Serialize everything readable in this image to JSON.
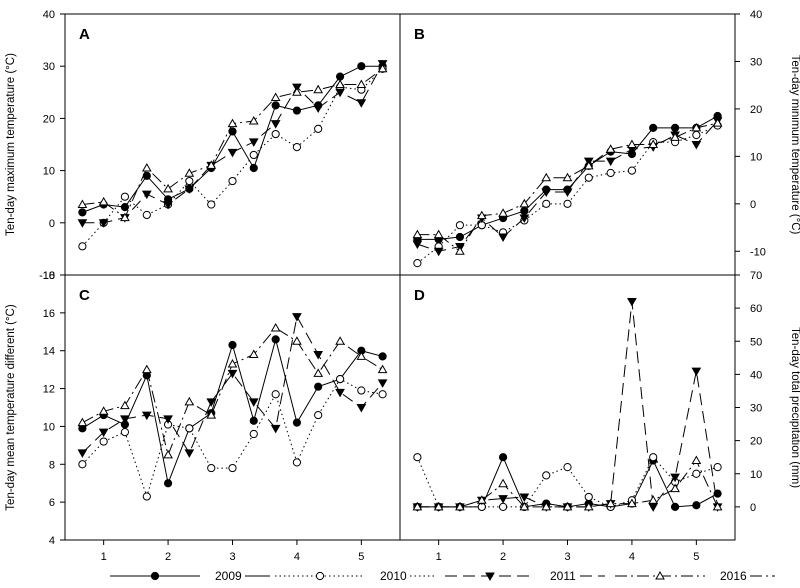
{
  "legend": [
    {
      "label": "2009",
      "dash": "",
      "marker": "circle-filled"
    },
    {
      "label": "2010",
      "dash": "1.5,3",
      "marker": "circle-open"
    },
    {
      "label": "2011",
      "dash": "12,6",
      "marker": "triangle-down-filled"
    },
    {
      "label": "2016",
      "dash": "12,4,2,4",
      "marker": "triangle-up-open"
    }
  ],
  "chart_data": [
    {
      "panel": "A",
      "type": "line",
      "ylabel": "Ten-day maximum temperature (°C)",
      "ylim": [
        -10,
        40
      ],
      "yticks": [
        "-10",
        "0",
        "10",
        "20",
        "30",
        "40"
      ],
      "y_axis_side": "left",
      "series": [
        {
          "name": "2009",
          "x": [
            0.67,
            1,
            1.33,
            1.67,
            2,
            2.33,
            2.67,
            3,
            3.33,
            3.67,
            4,
            4.33,
            4.67,
            5,
            5.33
          ],
          "values": [
            2,
            3.5,
            3,
            9,
            4.5,
            6.5,
            10.5,
            17.5,
            10.5,
            22.5,
            21.5,
            22.5,
            28,
            30,
            30
          ]
        },
        {
          "name": "2010",
          "x": [
            0.67,
            1,
            1.33,
            1.67,
            2,
            2.33,
            2.67,
            3,
            3.33,
            3.67,
            4,
            4.33,
            4.67,
            5,
            5.33
          ],
          "values": [
            -4.5,
            0,
            5,
            1.5,
            3.5,
            8,
            3.5,
            8,
            13,
            17,
            14.5,
            18,
            26,
            25.5,
            29.5
          ]
        },
        {
          "name": "2011",
          "x": [
            0.67,
            1,
            1.33,
            1.67,
            2,
            2.33,
            2.67,
            3,
            3.33,
            3.67,
            4,
            4.33,
            4.67,
            5,
            5.33
          ],
          "values": [
            0,
            0,
            1,
            5.5,
            3.5,
            6.5,
            11,
            13.5,
            15.5,
            19,
            26,
            22,
            25,
            23,
            30.5
          ]
        },
        {
          "name": "2016",
          "x": [
            0.67,
            1,
            1.33,
            1.67,
            2,
            2.33,
            2.67,
            3,
            3.33,
            3.67,
            4,
            4.33,
            4.67,
            5,
            5.33
          ],
          "values": [
            3.5,
            4,
            1,
            10.5,
            6.5,
            9.5,
            11,
            19,
            19.5,
            24,
            25,
            25.5,
            26.5,
            26.5,
            29.5
          ]
        }
      ]
    },
    {
      "panel": "B",
      "type": "line",
      "ylabel": "Ten-day minimum temperature (°C)",
      "ylim": [
        -15,
        40
      ],
      "yticks": [
        "-10",
        "0",
        "10",
        "20",
        "30",
        "40"
      ],
      "y_axis_side": "right",
      "series": [
        {
          "name": "2009",
          "x": [
            0.67,
            1,
            1.33,
            1.67,
            2,
            2.33,
            2.67,
            3,
            3.33,
            3.67,
            4,
            4.33,
            4.67,
            5,
            5.33
          ],
          "values": [
            -7.5,
            -7.5,
            -7,
            -4.5,
            -3,
            -1.5,
            3,
            3,
            8,
            11,
            10.5,
            16,
            16,
            16,
            18.5
          ]
        },
        {
          "name": "2010",
          "x": [
            0.67,
            1,
            1.33,
            1.67,
            2,
            2.33,
            2.67,
            3,
            3.33,
            3.67,
            4,
            4.33,
            4.67,
            5,
            5.33
          ],
          "values": [
            -12.5,
            -9,
            -4.5,
            -4.5,
            -6,
            -3.5,
            0,
            0,
            5.5,
            6.5,
            7,
            13,
            13,
            14.5,
            16.5
          ]
        },
        {
          "name": "2011",
          "x": [
            0.67,
            1,
            1.33,
            1.67,
            2,
            2.33,
            2.67,
            3,
            3.33,
            3.67,
            4,
            4.33,
            4.67,
            5,
            5.33
          ],
          "values": [
            -8.5,
            -10,
            -9,
            -3,
            -7,
            -3,
            2.5,
            2.5,
            9,
            9,
            11.5,
            12,
            14.5,
            12.5,
            17.5
          ]
        },
        {
          "name": "2016",
          "x": [
            0.67,
            1,
            1.33,
            1.67,
            2,
            2.33,
            2.67,
            3,
            3.33,
            3.67,
            4,
            4.33,
            4.67,
            5,
            5.33
          ],
          "values": [
            -6.5,
            -6.5,
            -10,
            -2.5,
            -2,
            0,
            5.5,
            5.5,
            8,
            11.5,
            12.5,
            12.5,
            14,
            16,
            17
          ]
        }
      ]
    },
    {
      "panel": "C",
      "type": "line",
      "ylabel": "Ten-day mean temperature different (°C)",
      "ylim": [
        4,
        18
      ],
      "yticks": [
        "4",
        "6",
        "8",
        "10",
        "12",
        "14",
        "16",
        "18"
      ],
      "y_axis_side": "left",
      "series": [
        {
          "name": "2009",
          "x": [
            0.67,
            1,
            1.33,
            1.67,
            2,
            2.33,
            2.67,
            3,
            3.33,
            3.67,
            4,
            4.33,
            4.67,
            5,
            5.33
          ],
          "values": [
            9.9,
            10.6,
            10.1,
            12.7,
            7,
            9.9,
            10.7,
            14.3,
            10.3,
            14.6,
            10.2,
            12.1,
            12.5,
            14,
            13.7
          ]
        },
        {
          "name": "2010",
          "x": [
            0.67,
            1,
            1.33,
            1.67,
            2,
            2.33,
            2.67,
            3,
            3.33,
            3.67,
            4,
            4.33,
            4.67,
            5,
            5.33
          ],
          "values": [
            8,
            9.2,
            9.7,
            6.3,
            10.1,
            9.9,
            7.8,
            7.8,
            9.6,
            11.7,
            8.1,
            10.6,
            12.5,
            11.9,
            11.7
          ]
        },
        {
          "name": "2011",
          "x": [
            0.67,
            1,
            1.33,
            1.67,
            2,
            2.33,
            2.67,
            3,
            3.33,
            3.67,
            4,
            4.33,
            4.67,
            5,
            5.33
          ],
          "values": [
            8.6,
            9.7,
            10.4,
            10.6,
            10.4,
            8.6,
            11.3,
            12.8,
            11.3,
            9.9,
            15.8,
            13.8,
            11.8,
            11,
            12.3
          ]
        },
        {
          "name": "2016",
          "x": [
            0.67,
            1,
            1.33,
            1.67,
            2,
            2.33,
            2.67,
            3,
            3.33,
            3.67,
            4,
            4.33,
            4.67,
            5,
            5.33
          ],
          "values": [
            10.2,
            10.8,
            11.1,
            13,
            8.5,
            11.3,
            10.6,
            13.3,
            13.8,
            15.2,
            14.5,
            12.8,
            14.5,
            13.7,
            13
          ]
        }
      ]
    },
    {
      "panel": "D",
      "type": "line",
      "ylabel": "Ten-day total precipitation (mm)",
      "ylim": [
        -10,
        70
      ],
      "yticks": [
        "0",
        "10",
        "20",
        "30",
        "40",
        "50",
        "60",
        "70"
      ],
      "y_axis_side": "right",
      "series": [
        {
          "name": "2009",
          "x": [
            0.67,
            1,
            1.33,
            1.67,
            2,
            2.33,
            2.67,
            3,
            3.33,
            3.67,
            4,
            4.33,
            4.67,
            5,
            5.33
          ],
          "values": [
            0,
            0,
            0,
            0,
            15,
            0,
            1,
            0,
            1,
            0,
            1,
            14,
            0,
            0.5,
            4
          ]
        },
        {
          "name": "2010",
          "x": [
            0.67,
            1,
            1.33,
            1.67,
            2,
            2.33,
            2.67,
            3,
            3.33,
            3.67,
            4,
            4.33,
            4.67,
            5,
            5.33
          ],
          "values": [
            15,
            0,
            0,
            0,
            0,
            0,
            9.5,
            12,
            3,
            0,
            2,
            15,
            7.5,
            10,
            12
          ]
        },
        {
          "name": "2011",
          "x": [
            0.67,
            1,
            1.33,
            1.67,
            2,
            2.33,
            2.67,
            3,
            3.33,
            3.67,
            4,
            4.33,
            4.67,
            5,
            5.33
          ],
          "values": [
            0,
            0,
            0,
            2,
            2.5,
            3,
            0,
            0,
            0,
            1,
            62,
            0,
            9,
            41,
            0
          ]
        },
        {
          "name": "2016",
          "x": [
            0.67,
            1,
            1.33,
            1.67,
            2,
            2.33,
            2.67,
            3,
            3.33,
            3.67,
            4,
            4.33,
            4.67,
            5,
            5.33
          ],
          "values": [
            0,
            0,
            0,
            2,
            7,
            0,
            0,
            0,
            0,
            1,
            1,
            2,
            5.5,
            14,
            0
          ]
        }
      ]
    }
  ],
  "x_axis": {
    "xlim": [
      0.4,
      5.6
    ],
    "tick_labels": [
      "1",
      "2",
      "3",
      "4",
      "5"
    ]
  }
}
